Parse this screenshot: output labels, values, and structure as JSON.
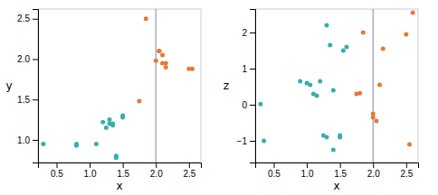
{
  "chart_data": [
    {
      "type": "scatter",
      "xlabel": "x",
      "ylabel": "y",
      "series": [
        {
          "color": "#3aada8",
          "x": [
            0.3,
            0.8,
            0.8,
            1.1,
            1.2,
            1.25,
            1.3,
            1.3,
            1.35,
            1.35,
            1.4,
            1.4,
            1.5,
            1.5
          ],
          "values": [
            0.95,
            0.95,
            0.93,
            0.95,
            1.22,
            1.15,
            1.25,
            1.2,
            1.2,
            1.18,
            0.8,
            0.78,
            1.3,
            1.28
          ]
        },
        {
          "color": "#e07b39",
          "x": [
            1.75,
            1.85,
            2.0,
            2.05,
            2.05,
            2.1,
            2.1,
            2.15,
            2.15,
            2.5,
            2.55
          ],
          "values": [
            1.48,
            2.5,
            1.98,
            2.1,
            2.1,
            1.95,
            2.05,
            1.95,
            1.9,
            1.88,
            1.88
          ]
        }
      ],
      "vline": {
        "x": 2.0,
        "color": "#9999bb"
      },
      "xlim": [
        0.22,
        2.68
      ],
      "xticks": [
        0.5,
        {
          "value": 1.0,
          "label": "1.0"
        },
        1.5,
        {
          "value": 2.0,
          "label": "2.0"
        },
        2.5
      ],
      "ylim": [
        0.72,
        2.62
      ],
      "yticks": [
        {
          "value": 1.0,
          "label": "1.0"
        },
        1.5,
        {
          "value": 2.0,
          "label": "2.0"
        },
        2.5
      ]
    },
    {
      "type": "scatter",
      "xlabel": "x",
      "ylabel": "z",
      "series": [
        {
          "color": "#3aada8",
          "x": [
            0.3,
            0.35,
            0.9,
            1.0,
            1.05,
            1.1,
            1.15,
            1.2,
            1.25,
            1.3,
            1.3,
            1.35,
            1.4,
            1.4,
            1.5,
            1.5,
            1.55,
            1.6
          ],
          "values": [
            0.02,
            -1.0,
            0.65,
            0.6,
            0.55,
            0.3,
            0.25,
            0.65,
            -0.85,
            -0.9,
            2.2,
            1.65,
            0.4,
            -1.25,
            -0.85,
            -0.9,
            1.5,
            1.6
          ]
        },
        {
          "color": "#e07b39",
          "x": [
            1.75,
            1.8,
            1.85,
            2.0,
            2.0,
            2.05,
            2.1,
            2.15,
            2.5,
            2.55,
            2.6
          ],
          "values": [
            0.3,
            0.32,
            2.0,
            -0.25,
            -0.35,
            -0.45,
            0.55,
            1.55,
            1.95,
            -1.1,
            2.55
          ]
        }
      ],
      "vline": {
        "x": 2.0,
        "color": "#9999bb"
      },
      "xlim": [
        0.22,
        2.68
      ],
      "xticks": [
        0.5,
        {
          "value": 1.0,
          "label": "1.0"
        },
        1.5,
        {
          "value": 2.0,
          "label": "2.0"
        },
        2.5
      ],
      "ylim": [
        -1.6,
        2.65
      ],
      "yticks": [
        {
          "value": -1,
          "label": "−1"
        },
        0,
        1,
        2
      ]
    }
  ]
}
